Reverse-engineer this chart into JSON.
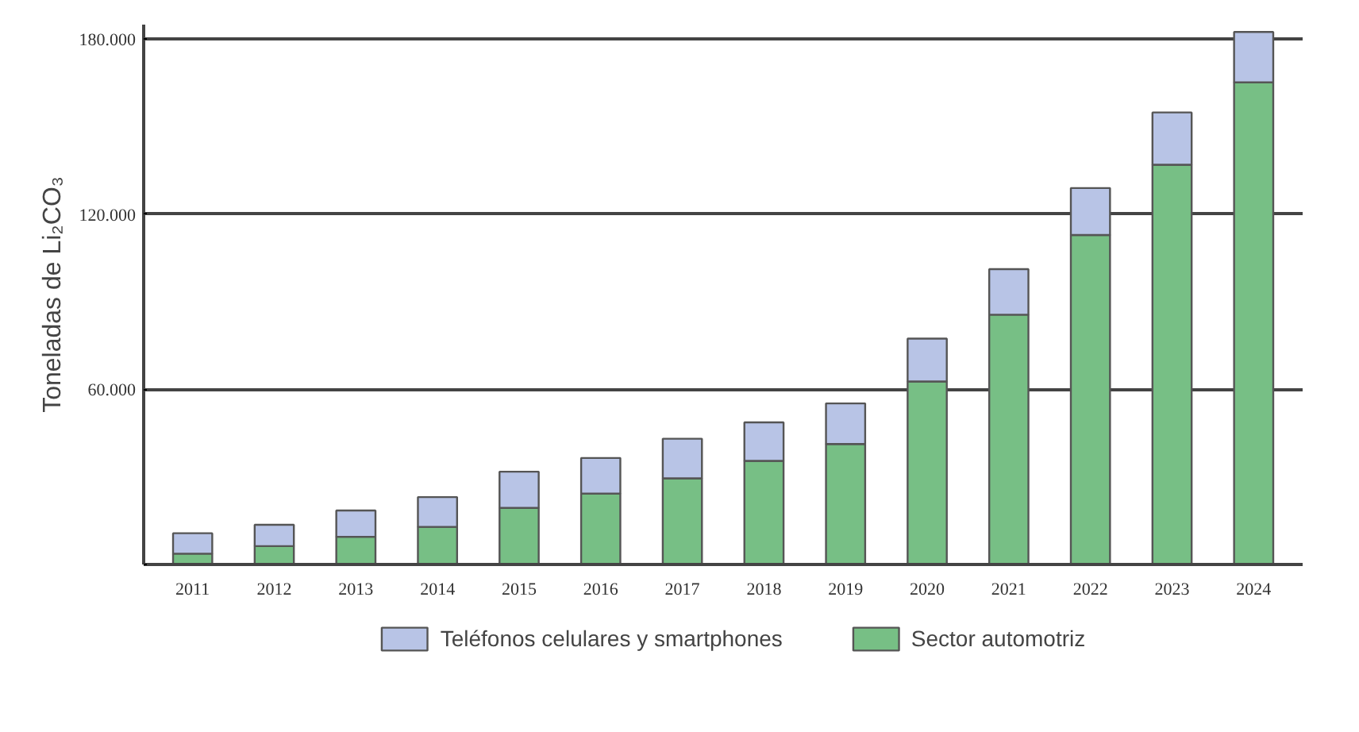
{
  "chart_data": {
    "type": "bar",
    "stacked": true,
    "ylabel": "Toneladas de Li₂CO₃",
    "categories": [
      "2011",
      "2012",
      "2013",
      "2014",
      "2015",
      "2016",
      "2017",
      "2018",
      "2019",
      "2020",
      "2021",
      "2022",
      "2023",
      "2024"
    ],
    "series": [
      {
        "name": "Sector automotriz",
        "color": "#77bf85",
        "values": [
          3700,
          6300,
          9500,
          12900,
          19400,
          24300,
          29500,
          35500,
          41300,
          62700,
          85600,
          112900,
          137000,
          165200
        ]
      },
      {
        "name": "Teléfonos celulares y smartphones",
        "color": "#b8c4e6",
        "values": [
          7000,
          7300,
          9000,
          10200,
          12400,
          12200,
          13600,
          13200,
          13900,
          14700,
          15600,
          16100,
          17900,
          17300
        ]
      }
    ],
    "ylim": [
      0,
      185000
    ],
    "yticks": [
      {
        "value": 0,
        "label": null
      },
      {
        "value": 60000,
        "label": "60.000"
      },
      {
        "value": 120000,
        "label": "120.000"
      },
      {
        "value": 180000,
        "label": "180.000"
      }
    ],
    "grid": "y",
    "legend": "bottom"
  }
}
